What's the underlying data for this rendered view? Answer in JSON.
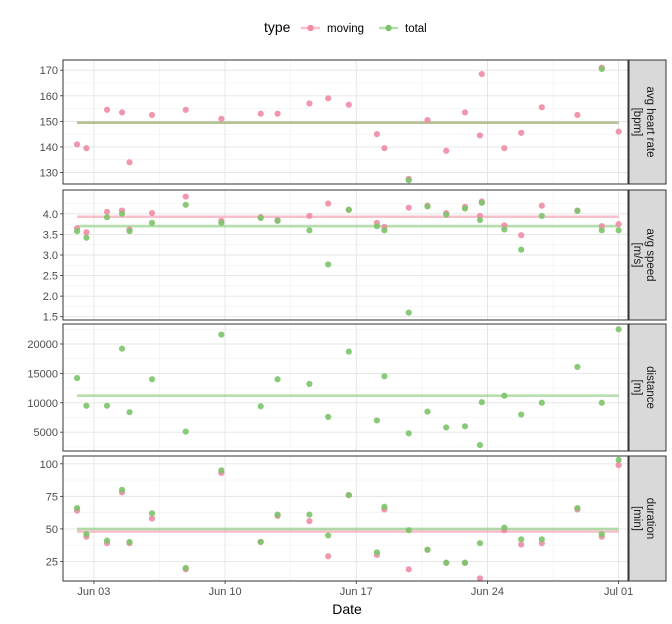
{
  "chart_data": {
    "type": "scatter",
    "xlabel": "Date",
    "legend": {
      "title": "type",
      "placement": "top",
      "entries": [
        {
          "name": "moving",
          "color": "#F08CA4"
        },
        {
          "name": "total",
          "color": "#7CC46A"
        }
      ]
    },
    "x_ticks": [
      "Jun 03",
      "Jun 10",
      "Jun 17",
      "Jun 24",
      "Jul 01"
    ],
    "x_tick_days": [
      3,
      10,
      17,
      24,
      31
    ],
    "xlim": [
      1.35,
      31.5
    ],
    "grid": true,
    "panels": [
      {
        "strip": [
          "avg heart rate",
          "[bpm]"
        ],
        "ylim": [
          125.5,
          174
        ],
        "y_ticks": [
          "130",
          "140",
          "150",
          "160",
          "170"
        ],
        "y_tick_values": [
          130,
          140,
          150,
          160,
          170
        ],
        "series": [
          {
            "name": "moving",
            "mean": 149.5,
            "x": [
              2.1,
              2.6,
              3.7,
              4.5,
              4.9,
              6.1,
              7.9,
              9.8,
              11.9,
              12.8,
              14.5,
              15.5,
              16.6,
              18.1,
              18.5,
              19.8,
              20.8,
              21.8,
              22.8,
              23.6,
              23.7,
              24.9,
              25.8,
              26.9,
              28.8,
              30.1,
              31.0
            ],
            "y": [
              141,
              139.5,
              154.5,
              153.5,
              134,
              152.5,
              154.5,
              151,
              153,
              153,
              157,
              159,
              156.5,
              145,
              139.5,
              127.5,
              150.5,
              138.5,
              153.5,
              144.5,
              168.5,
              139.5,
              145.5,
              155.5,
              152.5,
              171,
              146
            ]
          },
          {
            "name": "total",
            "mean": 149.5,
            "x": [
              19.8,
              30.1
            ],
            "y": [
              127,
              170.5
            ]
          }
        ]
      },
      {
        "strip": [
          "avg speed",
          "[m/s]"
        ],
        "ylim": [
          1.42,
          4.58
        ],
        "y_ticks": [
          "1.5",
          "2.0",
          "2.5",
          "3.0",
          "3.5",
          "4.0"
        ],
        "y_tick_values": [
          1.5,
          2.0,
          2.5,
          3.0,
          3.5,
          4.0
        ],
        "series": [
          {
            "name": "moving",
            "mean": 3.93,
            "x": [
              2.1,
              2.6,
              3.7,
              4.5,
              4.9,
              6.1,
              7.9,
              9.8,
              11.9,
              12.8,
              14.5,
              15.5,
              16.6,
              18.1,
              18.5,
              19.8,
              20.8,
              21.8,
              22.8,
              23.6,
              23.7,
              24.9,
              25.8,
              26.9,
              28.8,
              30.1,
              31.0
            ],
            "y": [
              3.65,
              3.55,
              4.05,
              4.08,
              3.62,
              4.02,
              4.42,
              3.83,
              3.92,
              3.85,
              3.95,
              4.25,
              4.1,
              3.78,
              3.68,
              4.15,
              4.2,
              4.02,
              4.17,
              3.95,
              4.3,
              3.72,
              3.48,
              4.2,
              4.08,
              3.7,
              3.75
            ]
          },
          {
            "name": "total",
            "mean": 3.7,
            "x": [
              2.1,
              2.6,
              3.7,
              4.5,
              4.9,
              6.1,
              7.9,
              9.8,
              11.9,
              12.8,
              14.5,
              15.5,
              16.6,
              18.1,
              18.5,
              19.8,
              20.8,
              21.8,
              22.8,
              23.6,
              23.7,
              24.9,
              25.8,
              26.9,
              28.8,
              30.1,
              31.0
            ],
            "y": [
              3.58,
              3.42,
              3.92,
              4.0,
              3.58,
              3.78,
              4.22,
              3.78,
              3.9,
              3.83,
              3.6,
              2.77,
              4.1,
              3.7,
              3.6,
              1.6,
              4.18,
              3.98,
              4.13,
              3.85,
              4.27,
              3.62,
              3.13,
              3.95,
              4.07,
              3.6,
              3.6
            ]
          }
        ]
      },
      {
        "strip": [
          "distance",
          "[m]"
        ],
        "ylim": [
          1800,
          23400
        ],
        "y_ticks": [
          "5000",
          "10000",
          "15000",
          "20000"
        ],
        "y_tick_values": [
          5000,
          10000,
          15000,
          20000
        ],
        "series": [
          {
            "name": "total",
            "mean": 11200,
            "x": [
              2.1,
              2.6,
              3.7,
              4.5,
              4.9,
              6.1,
              7.9,
              9.8,
              11.9,
              12.8,
              14.5,
              15.5,
              16.6,
              18.1,
              18.5,
              19.8,
              20.8,
              21.8,
              22.8,
              23.6,
              23.7,
              24.9,
              25.8,
              26.9,
              28.8,
              30.1,
              31.0
            ],
            "y": [
              14200,
              9500,
              9500,
              19200,
              8400,
              14000,
              5100,
              21600,
              9400,
              14000,
              13200,
              7600,
              18700,
              7000,
              14500,
              4800,
              8500,
              5800,
              6000,
              2800,
              10100,
              11200,
              8000,
              10000,
              16100,
              10000,
              22500
            ]
          }
        ]
      },
      {
        "strip": [
          "duration",
          "[min]"
        ],
        "ylim": [
          10,
          106
        ],
        "y_ticks": [
          "25",
          "50",
          "75",
          "100"
        ],
        "y_tick_values": [
          25,
          50,
          75,
          100
        ],
        "series": [
          {
            "name": "moving",
            "mean": 48,
            "x": [
              2.1,
              2.6,
              3.7,
              4.5,
              4.9,
              6.1,
              7.9,
              9.8,
              11.9,
              12.8,
              14.5,
              15.5,
              16.6,
              18.1,
              18.5,
              19.8,
              20.8,
              21.8,
              22.8,
              23.6,
              24.9,
              25.8,
              26.9,
              28.8,
              30.1,
              31.0
            ],
            "y": [
              64,
              44,
              39,
              78,
              39,
              58,
              19,
              93,
              40,
              60,
              56,
              29,
              76,
              30,
              65,
              19,
              34,
              24,
              24,
              12,
              49,
              38,
              39,
              65,
              44,
              99
            ]
          },
          {
            "name": "total",
            "mean": 50,
            "x": [
              2.1,
              2.6,
              3.7,
              4.5,
              4.9,
              6.1,
              7.9,
              9.8,
              11.9,
              12.8,
              14.5,
              15.5,
              16.6,
              18.1,
              18.5,
              19.8,
              20.8,
              21.8,
              22.8,
              23.6,
              24.9,
              25.8,
              26.9,
              28.8,
              30.1,
              31.0
            ],
            "y": [
              66,
              46,
              41,
              80,
              40,
              62,
              20,
              95,
              40,
              61,
              61,
              45,
              76,
              32,
              67,
              49,
              34,
              24,
              24,
              39,
              51,
              42,
              42,
              66,
              46,
              103
            ]
          }
        ]
      }
    ]
  }
}
